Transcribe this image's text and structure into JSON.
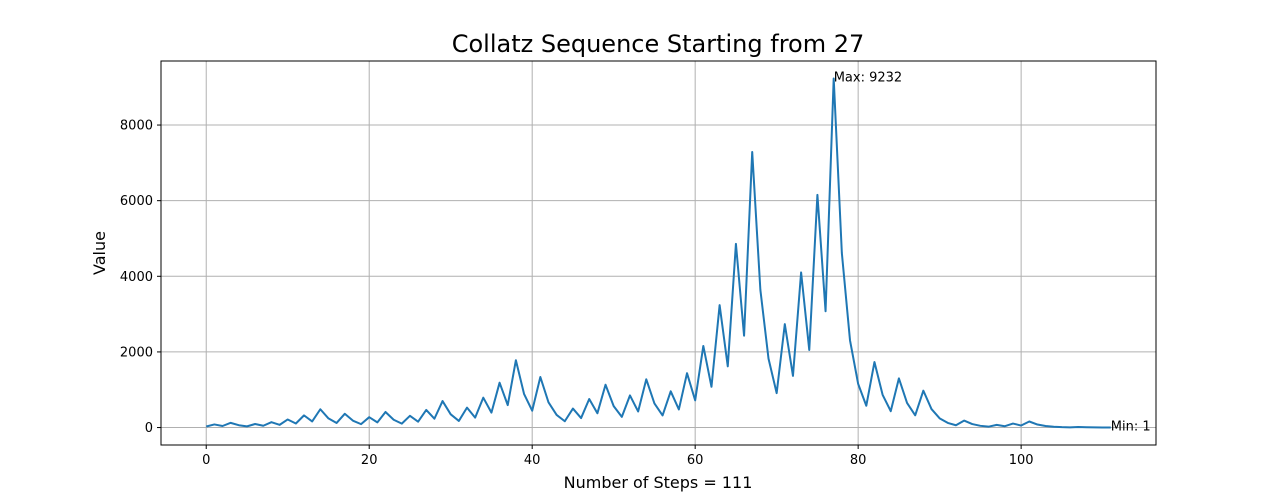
{
  "chart_data": {
    "type": "line",
    "title": "Collatz Sequence Starting from 27",
    "xlabel": "Number of Steps = 111",
    "ylabel": "Value",
    "xlim": [
      -5.55,
      116.55
    ],
    "ylim": [
      -461.55,
      9693.55
    ],
    "x_ticks": [
      0,
      20,
      40,
      60,
      80,
      100
    ],
    "y_ticks": [
      0,
      2000,
      4000,
      6000,
      8000
    ],
    "grid": true,
    "series": [
      {
        "color": "#1f77b4",
        "x_start": 0,
        "values": [
          27,
          82,
          41,
          124,
          62,
          31,
          94,
          47,
          142,
          71,
          214,
          107,
          322,
          161,
          484,
          242,
          121,
          364,
          182,
          91,
          274,
          137,
          412,
          206,
          103,
          310,
          155,
          466,
          233,
          700,
          350,
          175,
          526,
          263,
          790,
          395,
          1186,
          593,
          1780,
          890,
          445,
          1336,
          668,
          334,
          167,
          502,
          251,
          754,
          377,
          1132,
          566,
          283,
          850,
          425,
          1276,
          638,
          319,
          958,
          479,
          1438,
          719,
          2158,
          1079,
          3238,
          1619,
          4858,
          2429,
          7288,
          3644,
          1822,
          911,
          2734,
          1367,
          4102,
          2051,
          6154,
          3077,
          9232,
          4616,
          2308,
          1154,
          577,
          1732,
          866,
          433,
          1300,
          650,
          325,
          976,
          488,
          244,
          122,
          61,
          184,
          92,
          46,
          23,
          70,
          35,
          106,
          53,
          160,
          80,
          40,
          20,
          10,
          5,
          16,
          8,
          4,
          2,
          1
        ]
      }
    ],
    "annotations": [
      {
        "text": "Max: 9232",
        "x": 77,
        "y": 9232
      },
      {
        "text": "Min: 1",
        "x": 111,
        "y": 1
      }
    ]
  }
}
